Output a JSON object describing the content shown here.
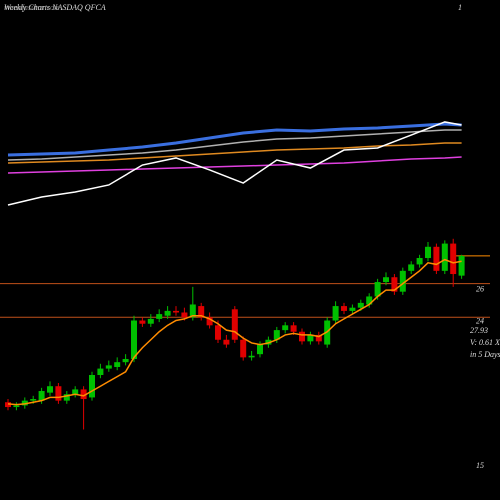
{
  "chart_data": [
    {
      "type": "candlestick",
      "title": "Weekly Charts NASDAQ QFCA",
      "watermark": "munafasutra.com",
      "corner_label": 1,
      "last_close": 27.93,
      "volume_label": "V: 0.61 X",
      "period_label": "in 5 Days",
      "ylim": [
        12.7,
        43.9
      ],
      "yticks": [
        15,
        24,
        26
      ],
      "hlines": [
        26.2,
        24.1
      ],
      "hline_color": "#c0501a",
      "up_color": "#00c000",
      "down_color": "#e00000",
      "ma_color": "#ff8c00",
      "open": [
        18.8,
        18.5,
        18.6,
        18.9,
        18.9,
        19.4,
        19.8,
        18.9,
        19.3,
        19.6,
        19.1,
        20.5,
        20.9,
        21.0,
        21.3,
        21.5,
        23.9,
        23.7,
        24.0,
        24.2,
        24.5,
        24.4,
        24.1,
        24.8,
        24.1,
        23.6,
        22.7,
        24.6,
        22.7,
        21.6,
        21.8,
        22.4,
        22.7,
        23.3,
        23.6,
        23.2,
        22.6,
        23.0,
        22.4,
        23.9,
        24.8,
        24.5,
        24.7,
        24.9,
        25.4,
        26.3,
        26.6,
        25.7,
        27.0,
        27.4,
        27.8,
        28.5,
        27.0,
        28.7,
        26.7
      ],
      "high": [
        19.0,
        18.8,
        19.1,
        19.2,
        19.7,
        20.1,
        20.0,
        19.5,
        19.8,
        19.8,
        20.7,
        21.2,
        21.4,
        21.6,
        21.8,
        24.2,
        24.1,
        24.3,
        24.6,
        24.8,
        24.8,
        24.7,
        26.0,
        25.0,
        24.4,
        23.9,
        23.0,
        24.8,
        22.9,
        22.0,
        22.6,
        22.9,
        23.5,
        23.8,
        23.8,
        23.4,
        23.2,
        23.2,
        24.1,
        25.1,
        25.0,
        24.9,
        25.2,
        25.6,
        26.5,
        26.9,
        26.8,
        27.2,
        27.6,
        28.0,
        28.8,
        28.7,
        28.9,
        29.0,
        28.0
      ],
      "low": [
        18.3,
        18.3,
        18.4,
        18.7,
        18.7,
        19.2,
        18.7,
        18.7,
        19.1,
        17.1,
        18.9,
        20.3,
        20.7,
        20.8,
        21.1,
        21.3,
        23.5,
        23.5,
        23.8,
        24.0,
        24.2,
        23.9,
        23.9,
        23.9,
        23.4,
        22.5,
        22.2,
        22.5,
        21.4,
        21.4,
        21.6,
        22.2,
        22.5,
        23.1,
        23.0,
        22.4,
        22.4,
        22.4,
        22.2,
        23.7,
        24.3,
        24.3,
        24.5,
        24.7,
        25.2,
        26.1,
        25.5,
        25.5,
        26.8,
        27.2,
        27.6,
        26.8,
        26.8,
        26.0,
        26.5
      ],
      "close": [
        18.5,
        18.6,
        18.9,
        19.0,
        19.5,
        19.8,
        18.9,
        19.3,
        19.6,
        19.0,
        20.5,
        20.9,
        21.1,
        21.3,
        21.5,
        23.9,
        23.7,
        24.0,
        24.3,
        24.5,
        24.4,
        24.1,
        24.9,
        24.1,
        23.6,
        22.7,
        22.4,
        22.7,
        21.6,
        21.7,
        22.4,
        22.7,
        23.3,
        23.6,
        23.2,
        22.6,
        23.0,
        22.6,
        23.9,
        24.8,
        24.5,
        24.7,
        25.0,
        25.4,
        26.3,
        26.6,
        25.7,
        27.0,
        27.4,
        27.8,
        28.5,
        27.0,
        28.7,
        26.8,
        27.93
      ],
      "ma": [
        18.7,
        18.65,
        18.7,
        18.8,
        18.9,
        19.1,
        19.1,
        19.2,
        19.3,
        19.2,
        19.5,
        19.8,
        20.1,
        20.4,
        20.7,
        21.6,
        22.2,
        22.7,
        23.2,
        23.6,
        23.9,
        24.0,
        24.2,
        24.2,
        24.0,
        23.7,
        23.3,
        23.2,
        22.8,
        22.5,
        22.4,
        22.5,
        22.7,
        23.0,
        23.1,
        23.0,
        23.0,
        22.9,
        23.2,
        23.7,
        24.0,
        24.3,
        24.6,
        24.9,
        25.4,
        25.8,
        25.8,
        26.2,
        26.6,
        27.0,
        27.5,
        27.4,
        27.7,
        27.5,
        27.6
      ]
    },
    {
      "type": "line",
      "ylim": [
        0,
        100
      ],
      "x": [
        0,
        4,
        8,
        12,
        16,
        20,
        24,
        28,
        32,
        36,
        40,
        44,
        48,
        52,
        54
      ],
      "series": [
        {
          "color": "#3a6fe0",
          "values": [
            54.2,
            55,
            55.8,
            58.3,
            60.8,
            64.2,
            68.3,
            72.5,
            75,
            74.2,
            75.8,
            76.7,
            78.3,
            80,
            79.2
          ]
        },
        {
          "color": "#b0b0b0",
          "values": [
            50,
            50.8,
            52.5,
            54.2,
            55.8,
            58.3,
            61.7,
            65,
            67.5,
            68.3,
            70,
            71.7,
            73.3,
            75,
            75
          ]
        },
        {
          "color": "#e08a20",
          "values": [
            47.5,
            48.3,
            49.2,
            50,
            51.7,
            53.3,
            55,
            56.7,
            58.3,
            59.2,
            60,
            61.7,
            62.5,
            64.2,
            64.2
          ]
        },
        {
          "color": "#e040e0",
          "values": [
            39.2,
            40,
            40.8,
            41.7,
            42.5,
            43.3,
            44.2,
            45,
            45.8,
            46.7,
            47.5,
            49.2,
            50.8,
            51.7,
            52.5
          ]
        },
        {
          "color": "#ffffff",
          "values": [
            12.5,
            19.2,
            23.3,
            29.2,
            45.8,
            51.7,
            41.7,
            30.8,
            50,
            43.3,
            58.3,
            60,
            70.8,
            81.7,
            79.2
          ]
        }
      ]
    }
  ]
}
